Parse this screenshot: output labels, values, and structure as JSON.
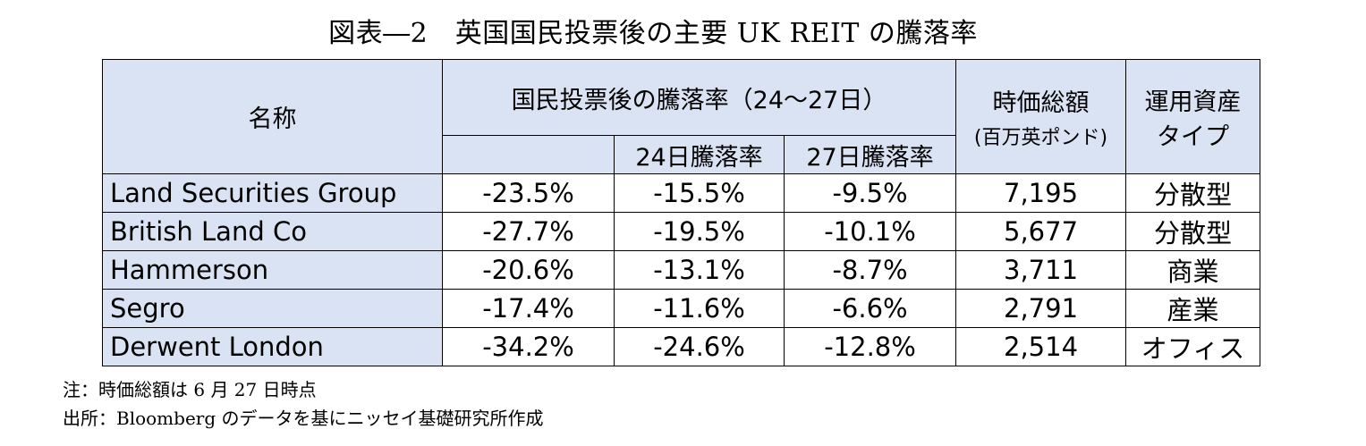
{
  "title": "図表―2　英国国民投票後の主要 UK REIT の騰落率",
  "table": {
    "headers": {
      "name": "名称",
      "group": "国民投票後の騰落率（24～27日）",
      "day24": "24日騰落率",
      "day27": "27日騰落率",
      "market_cap": "時価総額",
      "market_cap_unit": "(百万英ポンド)",
      "asset_type_line1": "運用資産",
      "asset_type_line2": "タイプ"
    },
    "rows": [
      {
        "name": "Land Securities Group",
        "total": "-23.5%",
        "day24": "-15.5%",
        "day27": "-9.5%",
        "market_cap": "7,195",
        "type": "分散型"
      },
      {
        "name": "British Land Co",
        "total": "-27.7%",
        "day24": "-19.5%",
        "day27": "-10.1%",
        "market_cap": "5,677",
        "type": "分散型"
      },
      {
        "name": "Hammerson",
        "total": "-20.6%",
        "day24": "-13.1%",
        "day27": "-8.7%",
        "market_cap": "3,711",
        "type": "商業"
      },
      {
        "name": "Segro",
        "total": "-17.4%",
        "day24": "-11.6%",
        "day27": "-6.6%",
        "market_cap": "2,791",
        "type": "産業"
      },
      {
        "name": "Derwent London",
        "total": "-34.2%",
        "day24": "-24.6%",
        "day27": "-12.8%",
        "market_cap": "2,514",
        "type": "オフィス"
      }
    ]
  },
  "notes": {
    "note": "注：時価総額は 6 月 27 日時点",
    "source": "出所：Bloomberg のデータを基にニッセイ基礎研究所作成"
  }
}
